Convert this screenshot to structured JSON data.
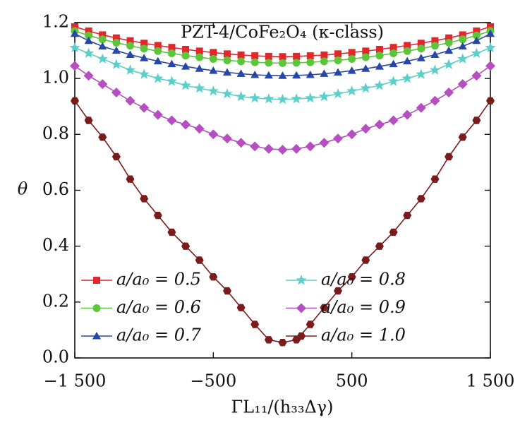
{
  "chart_data": {
    "type": "line",
    "annotation": "PZT-4/CoFe₂O₄ (κ-class)",
    "x_label": "ΓL₁₁/(h₃₃Δγ)",
    "y_label": "θ",
    "x": [
      -1500,
      -1400,
      -1300,
      -1200,
      -1100,
      -1000,
      -900,
      -800,
      -700,
      -600,
      -500,
      -400,
      -300,
      -200,
      -100,
      0,
      100,
      200,
      300,
      400,
      500,
      600,
      700,
      800,
      900,
      1000,
      1100,
      1200,
      1300,
      1400,
      1500
    ],
    "series": [
      {
        "name": "a/a₀ = 0.5",
        "color": "#e3262b",
        "marker": "square",
        "values": [
          1.185,
          1.17,
          1.156,
          1.145,
          1.135,
          1.126,
          1.118,
          1.111,
          1.104,
          1.098,
          1.093,
          1.088,
          1.084,
          1.081,
          1.079,
          1.078,
          1.079,
          1.081,
          1.084,
          1.088,
          1.093,
          1.098,
          1.104,
          1.111,
          1.118,
          1.126,
          1.135,
          1.145,
          1.156,
          1.17,
          1.185
        ]
      },
      {
        "name": "a/a₀ = 0.6",
        "color": "#5cc63a",
        "marker": "circle",
        "values": [
          1.17,
          1.154,
          1.14,
          1.128,
          1.117,
          1.107,
          1.098,
          1.09,
          1.082,
          1.076,
          1.07,
          1.065,
          1.061,
          1.058,
          1.056,
          1.055,
          1.056,
          1.058,
          1.061,
          1.065,
          1.07,
          1.076,
          1.082,
          1.09,
          1.098,
          1.107,
          1.117,
          1.128,
          1.14,
          1.154,
          1.17
        ]
      },
      {
        "name": "a/a₀ = 0.7",
        "color": "#2747a6",
        "marker": "triangle",
        "values": [
          1.16,
          1.135,
          1.115,
          1.1,
          1.085,
          1.073,
          1.062,
          1.052,
          1.043,
          1.035,
          1.028,
          1.022,
          1.017,
          1.013,
          1.011,
          1.01,
          1.011,
          1.013,
          1.017,
          1.022,
          1.028,
          1.035,
          1.043,
          1.052,
          1.062,
          1.073,
          1.085,
          1.1,
          1.115,
          1.135,
          1.16
        ]
      },
      {
        "name": "a/a₀ = 0.8",
        "color": "#5ccfcb",
        "marker": "star",
        "values": [
          1.11,
          1.09,
          1.07,
          1.05,
          1.03,
          1.015,
          1.0,
          0.99,
          0.975,
          0.965,
          0.955,
          0.945,
          0.935,
          0.93,
          0.927,
          0.925,
          0.927,
          0.93,
          0.935,
          0.945,
          0.955,
          0.965,
          0.975,
          0.99,
          1.0,
          1.015,
          1.03,
          1.05,
          1.07,
          1.09,
          1.11
        ]
      },
      {
        "name": "a/a₀ = 0.9",
        "color": "#b54ec1",
        "marker": "diamond",
        "values": [
          1.045,
          1.01,
          0.98,
          0.95,
          0.92,
          0.895,
          0.87,
          0.85,
          0.835,
          0.82,
          0.8,
          0.785,
          0.77,
          0.757,
          0.748,
          0.745,
          0.748,
          0.757,
          0.77,
          0.785,
          0.8,
          0.82,
          0.835,
          0.85,
          0.87,
          0.895,
          0.92,
          0.95,
          0.98,
          1.01,
          1.045
        ]
      },
      {
        "name": "a/a₀ = 1.0",
        "color": "#7b1c1c",
        "marker": "hexagon",
        "values": [
          0.92,
          0.85,
          0.79,
          0.72,
          0.64,
          0.57,
          0.51,
          0.45,
          0.4,
          0.35,
          0.29,
          0.24,
          0.18,
          0.12,
          0.065,
          0.055,
          0.065,
          0.12,
          0.18,
          0.24,
          0.29,
          0.35,
          0.4,
          0.45,
          0.51,
          0.57,
          0.64,
          0.72,
          0.79,
          0.85,
          0.92
        ]
      }
    ],
    "xlim": [
      -1500,
      1500
    ],
    "xticks": [
      {
        "value": -1500,
        "label": "−1 500"
      },
      {
        "value": -500,
        "label": "−500"
      },
      500,
      {
        "value": 1500,
        "label": "1 500"
      }
    ],
    "ylim": [
      0,
      1.2
    ],
    "yticks": [
      {
        "value": 0,
        "label": "0.0"
      },
      0.2,
      0.4,
      0.6,
      0.8,
      {
        "value": 1,
        "label": "1.0"
      },
      1.2
    ],
    "legend": "lower center",
    "grid": false
  }
}
